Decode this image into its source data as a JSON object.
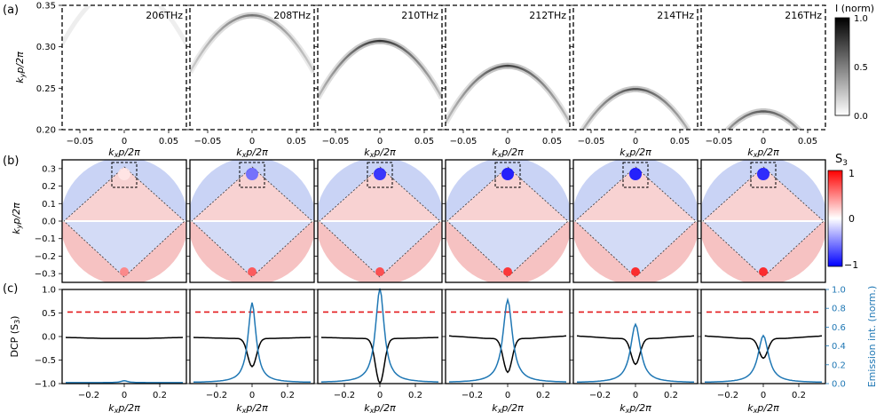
{
  "figure": {
    "panel_labels": [
      "(a)",
      "(b)",
      "(c)"
    ],
    "colorbar_a": {
      "title": "I (norm)",
      "ticks": [
        "0.0",
        "0.5",
        "1.0"
      ]
    },
    "colorbar_b": {
      "title": "S",
      "title_sub": "3",
      "ticks": [
        "−1",
        "0",
        "1"
      ]
    }
  },
  "chart_data": [
    {
      "type": "heatmap",
      "id": "a",
      "panels": [
        {
          "label": "206THz",
          "intensity": 0.0,
          "apex_ky": 0.372
        },
        {
          "label": "208THz",
          "intensity": 0.55,
          "apex_ky": 0.338
        },
        {
          "label": "210THz",
          "intensity": 0.8,
          "apex_ky": 0.307
        },
        {
          "label": "212THz",
          "intensity": 0.75,
          "apex_ky": 0.277
        },
        {
          "label": "214THz",
          "intensity": 0.7,
          "apex_ky": 0.249
        },
        {
          "label": "216THz",
          "intensity": 0.65,
          "apex_ky": 0.222
        }
      ],
      "xlabel": "k",
      "xlabel_sub": "x",
      "xlabel_rest": "p/2π",
      "ylabel": "k",
      "ylabel_sub": "y",
      "ylabel_rest": "p/2π",
      "x_ticks": [
        "−0.05",
        "0",
        "0.05"
      ],
      "y_ticks": [
        "0.20",
        "0.25",
        "0.30",
        "0.35"
      ],
      "xlim": [
        -0.07,
        0.07
      ],
      "ylim": [
        0.2,
        0.35
      ],
      "colorscale": "grays",
      "clim": [
        0,
        1
      ]
    },
    {
      "type": "heatmap",
      "id": "b",
      "panels": [
        {
          "label": "206THz",
          "top_spot": 0.1,
          "bottom_spot": 0.5
        },
        {
          "label": "208THz",
          "top_spot": -0.6,
          "bottom_spot": 0.7
        },
        {
          "label": "210THz",
          "top_spot": -0.85,
          "bottom_spot": 0.75
        },
        {
          "label": "212THz",
          "top_spot": -0.95,
          "bottom_spot": 0.85
        },
        {
          "label": "214THz",
          "top_spot": -0.95,
          "bottom_spot": 0.9
        },
        {
          "label": "216THz",
          "top_spot": -0.9,
          "bottom_spot": 0.9
        }
      ],
      "ylabel": "k",
      "ylabel_sub": "y",
      "ylabel_rest": "p/2π",
      "y_ticks": [
        "0.3",
        "0.2",
        "0.1",
        "0.0",
        "−0.1",
        "−0.2",
        "−0.3"
      ],
      "xlim": [
        -0.35,
        0.35
      ],
      "ylim": [
        -0.35,
        0.35
      ],
      "colorscale": "bwr",
      "clim": [
        -1,
        1
      ]
    },
    {
      "type": "line",
      "id": "c",
      "xlabel": "k",
      "xlabel_sub": "x",
      "xlabel_rest": "p/2π",
      "ylabel": "DCP (S",
      "ylabel_sub": "3",
      "ylabel_close": ")",
      "y2label": "Emission int. (norm.)",
      "x_ticks": [
        "−0.2",
        "0",
        "0.2"
      ],
      "y_ticks": [
        "1.0",
        "0.5",
        "0.0",
        "−0.5",
        "−1.0"
      ],
      "y2_ticks": [
        "1.0",
        "0.8",
        "0.6",
        "0.4",
        "0.2",
        "0.0"
      ],
      "xlim": [
        -0.35,
        0.35
      ],
      "ylim": [
        -1.0,
        1.0
      ],
      "y2lim": [
        0.0,
        1.0
      ],
      "reference_line": {
        "y": 0.52,
        "color": "#e41a1c",
        "style": "dashed"
      },
      "colors": {
        "dcp": "#000000",
        "emission": "#1f77b4"
      },
      "panels": [
        {
          "label": "206THz",
          "dcp_dip": -0.0,
          "emission_peak": 0.02
        },
        {
          "label": "208THz",
          "dcp_dip": -0.6,
          "emission_peak": 0.85
        },
        {
          "label": "210THz",
          "dcp_dip": -0.95,
          "emission_peak": 1.0
        },
        {
          "label": "212THz",
          "dcp_dip": -0.72,
          "emission_peak": 0.88
        },
        {
          "label": "214THz",
          "dcp_dip": -0.55,
          "emission_peak": 0.62
        },
        {
          "label": "216THz",
          "dcp_dip": -0.42,
          "emission_peak": 0.5
        }
      ]
    }
  ]
}
